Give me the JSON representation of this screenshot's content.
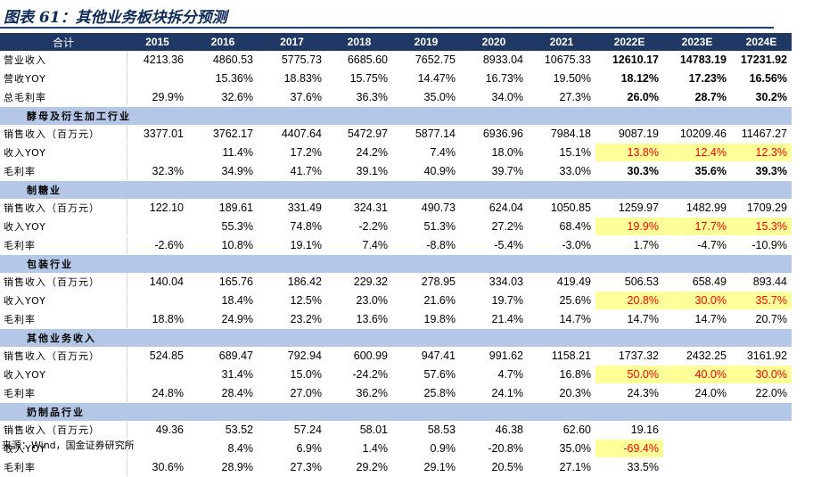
{
  "title": "图表 61：其他业务板块拆分预测",
  "header": [
    "合计",
    "2015",
    "2016",
    "2017",
    "2018",
    "2019",
    "2020",
    "2021",
    "2022E",
    "2023E",
    "2024E"
  ],
  "source": "来源：Wind，国金证券研究所",
  "highlight_color": "#ffff99",
  "highlight_text_color": "#ff0000",
  "header_color": "#203864",
  "section_color": "#b4c7e7",
  "rows": [
    {
      "type": "row",
      "label": "营业收入",
      "values": [
        "4213.36",
        "4860.53",
        "5775.73",
        "6685.60",
        "7652.75",
        "8933.04",
        "10675.33",
        "12610.17",
        "14783.19",
        "17231.92"
      ],
      "bold": [
        7,
        8,
        9
      ],
      "hl": []
    },
    {
      "type": "row",
      "label": "营收YOY",
      "values": [
        "",
        "15.36%",
        "18.83%",
        "15.75%",
        "14.47%",
        "16.73%",
        "19.50%",
        "18.12%",
        "17.23%",
        "16.56%"
      ],
      "bold": [
        7,
        8,
        9
      ],
      "hl": []
    },
    {
      "type": "row",
      "label": "总毛利率",
      "values": [
        "29.9%",
        "32.6%",
        "37.6%",
        "36.3%",
        "35.0%",
        "34.0%",
        "27.3%",
        "26.0%",
        "28.7%",
        "30.2%"
      ],
      "bold": [
        7,
        8,
        9
      ],
      "hl": []
    },
    {
      "type": "sec",
      "label": "酵母及衍生加工行业"
    },
    {
      "type": "row",
      "label": "销售收入（百万元）",
      "values": [
        "3377.01",
        "3762.17",
        "4407.64",
        "5472.97",
        "5877.14",
        "6936.96",
        "7984.18",
        "9087.19",
        "10209.46",
        "11467.27"
      ],
      "bold": [],
      "hl": []
    },
    {
      "type": "row",
      "label": "收入YOY",
      "values": [
        "",
        "11.4%",
        "17.2%",
        "24.2%",
        "7.4%",
        "18.0%",
        "15.1%",
        "13.8%",
        "12.4%",
        "12.3%"
      ],
      "bold": [],
      "hl": [
        7,
        8,
        9
      ]
    },
    {
      "type": "row",
      "label": "毛利率",
      "values": [
        "32.3%",
        "34.9%",
        "41.7%",
        "39.1%",
        "40.9%",
        "39.7%",
        "33.0%",
        "30.3%",
        "35.6%",
        "39.3%"
      ],
      "bold": [
        7,
        8,
        9
      ],
      "hl": []
    },
    {
      "type": "sec",
      "label": "制糖业"
    },
    {
      "type": "row",
      "label": "销售收入（百万元）",
      "values": [
        "122.10",
        "189.61",
        "331.49",
        "324.31",
        "490.73",
        "624.04",
        "1050.85",
        "1259.97",
        "1482.99",
        "1709.29"
      ],
      "bold": [],
      "hl": []
    },
    {
      "type": "row",
      "label": "收入YOY",
      "values": [
        "",
        "55.3%",
        "74.8%",
        "-2.2%",
        "51.3%",
        "27.2%",
        "68.4%",
        "19.9%",
        "17.7%",
        "15.3%"
      ],
      "bold": [],
      "hl": [
        7,
        8,
        9
      ]
    },
    {
      "type": "row",
      "label": "毛利率",
      "values": [
        "-2.6%",
        "10.8%",
        "19.1%",
        "7.4%",
        "-8.8%",
        "-5.4%",
        "-3.0%",
        "1.7%",
        "-4.7%",
        "-10.9%"
      ],
      "bold": [],
      "hl": []
    },
    {
      "type": "sec",
      "label": "包装行业"
    },
    {
      "type": "row",
      "label": "销售收入（百万元）",
      "values": [
        "140.04",
        "165.76",
        "186.42",
        "229.32",
        "278.95",
        "334.03",
        "419.49",
        "506.53",
        "658.49",
        "893.44"
      ],
      "bold": [],
      "hl": []
    },
    {
      "type": "row",
      "label": "收入YOY",
      "values": [
        "",
        "18.4%",
        "12.5%",
        "23.0%",
        "21.6%",
        "19.7%",
        "25.6%",
        "20.8%",
        "30.0%",
        "35.7%"
      ],
      "bold": [],
      "hl": [
        7,
        8,
        9
      ]
    },
    {
      "type": "row",
      "label": "毛利率",
      "values": [
        "18.8%",
        "24.9%",
        "23.2%",
        "13.6%",
        "19.8%",
        "21.4%",
        "14.7%",
        "14.7%",
        "14.7%",
        "20.7%"
      ],
      "bold": [],
      "hl": []
    },
    {
      "type": "sec",
      "label": "其他业务收入"
    },
    {
      "type": "row",
      "label": "销售收入（百万元）",
      "values": [
        "524.85",
        "689.47",
        "792.94",
        "600.99",
        "947.41",
        "991.62",
        "1158.21",
        "1737.32",
        "2432.25",
        "3161.92"
      ],
      "bold": [],
      "hl": []
    },
    {
      "type": "row",
      "label": "收入YOY",
      "values": [
        "",
        "31.4%",
        "15.0%",
        "-24.2%",
        "57.6%",
        "4.7%",
        "16.8%",
        "50.0%",
        "40.0%",
        "30.0%"
      ],
      "bold": [],
      "hl": [
        7,
        8,
        9
      ]
    },
    {
      "type": "row",
      "label": "毛利率",
      "values": [
        "24.8%",
        "28.4%",
        "27.0%",
        "36.2%",
        "25.8%",
        "24.1%",
        "20.3%",
        "24.3%",
        "24.0%",
        "22.0%"
      ],
      "bold": [],
      "hl": []
    },
    {
      "type": "sec",
      "label": "奶制品行业"
    },
    {
      "type": "row",
      "label": "销售收入（百万元）",
      "values": [
        "49.36",
        "53.52",
        "57.24",
        "58.01",
        "58.53",
        "46.38",
        "62.60",
        "19.16",
        "",
        ""
      ],
      "bold": [],
      "hl": []
    },
    {
      "type": "row",
      "label": "收入YOY",
      "values": [
        "",
        "8.4%",
        "6.9%",
        "1.4%",
        "0.9%",
        "-20.8%",
        "35.0%",
        "-69.4%",
        "",
        ""
      ],
      "bold": [],
      "hl": [
        7
      ]
    },
    {
      "type": "row",
      "label": "毛利率",
      "values": [
        "30.6%",
        "28.9%",
        "27.3%",
        "29.2%",
        "29.1%",
        "20.5%",
        "27.1%",
        "33.5%",
        "",
        ""
      ],
      "bold": [],
      "hl": []
    }
  ]
}
